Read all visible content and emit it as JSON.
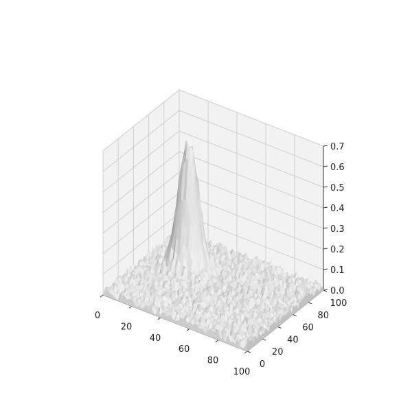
{
  "chart_data": {
    "type": "surface",
    "title": "",
    "xlabel": "",
    "ylabel": "",
    "zlabel": "",
    "x_ticks": [
      "0",
      "20",
      "40",
      "60",
      "80",
      "100"
    ],
    "y_ticks": [
      "0",
      "20",
      "40",
      "60",
      "80",
      "100"
    ],
    "z_ticks": [
      "0.0",
      "0.1",
      "0.2",
      "0.3",
      "0.4",
      "0.5",
      "0.6",
      "0.7"
    ],
    "xlim": [
      0,
      100
    ],
    "ylim": [
      0,
      100
    ],
    "zlim": [
      0,
      0.7
    ],
    "grid": true,
    "surface_color": "#c8c8c8",
    "pane_color": "#f2f2f2",
    "features": {
      "baseline_level": 0.02,
      "noise_amplitude": 0.02,
      "peak": {
        "x": 25,
        "y": 65,
        "height": 0.65,
        "plateau_radius": 7,
        "edge_width": 2.5
      }
    }
  }
}
